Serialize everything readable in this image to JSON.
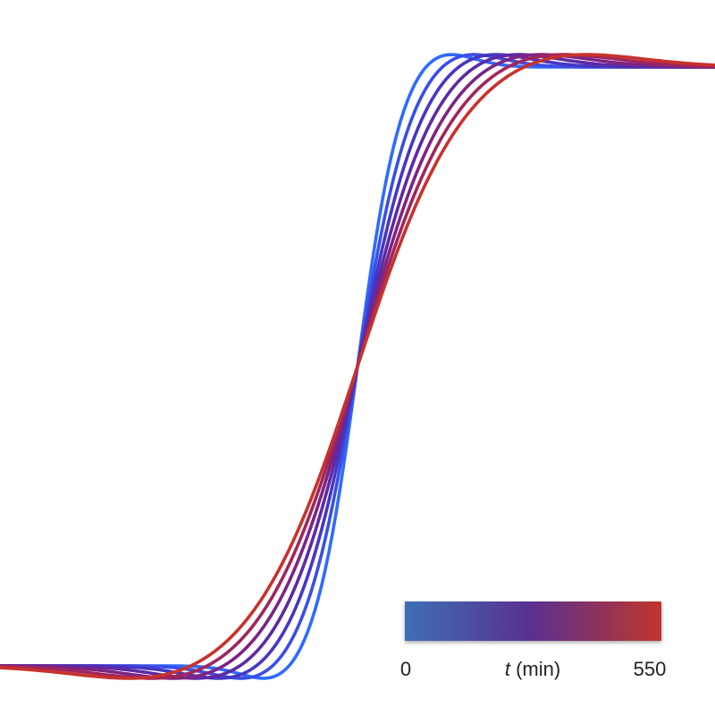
{
  "chart_data": {
    "type": "line",
    "title": "",
    "xlabel": "",
    "ylabel": "",
    "grid": false,
    "axes_visible": false,
    "series": [
      {
        "t": 0,
        "color": "#2f6bff"
      },
      {
        "t": 92,
        "color": "#3a4fe6"
      },
      {
        "t": 183,
        "color": "#4636c4"
      },
      {
        "t": 275,
        "color": "#5d2aa4"
      },
      {
        "t": 367,
        "color": "#7d2482"
      },
      {
        "t": 458,
        "color": "#a0265a"
      },
      {
        "t": 550,
        "color": "#c8322c"
      }
    ],
    "colorbar": {
      "variable": "t",
      "unit": "(min)",
      "min_label": "0",
      "max_label": "550",
      "min_value": 0,
      "max_value": 550,
      "color_low": "#3f6fb5",
      "color_mid": "#5a2f8f",
      "color_high": "#c0362c",
      "placement": "bottom-right"
    }
  }
}
